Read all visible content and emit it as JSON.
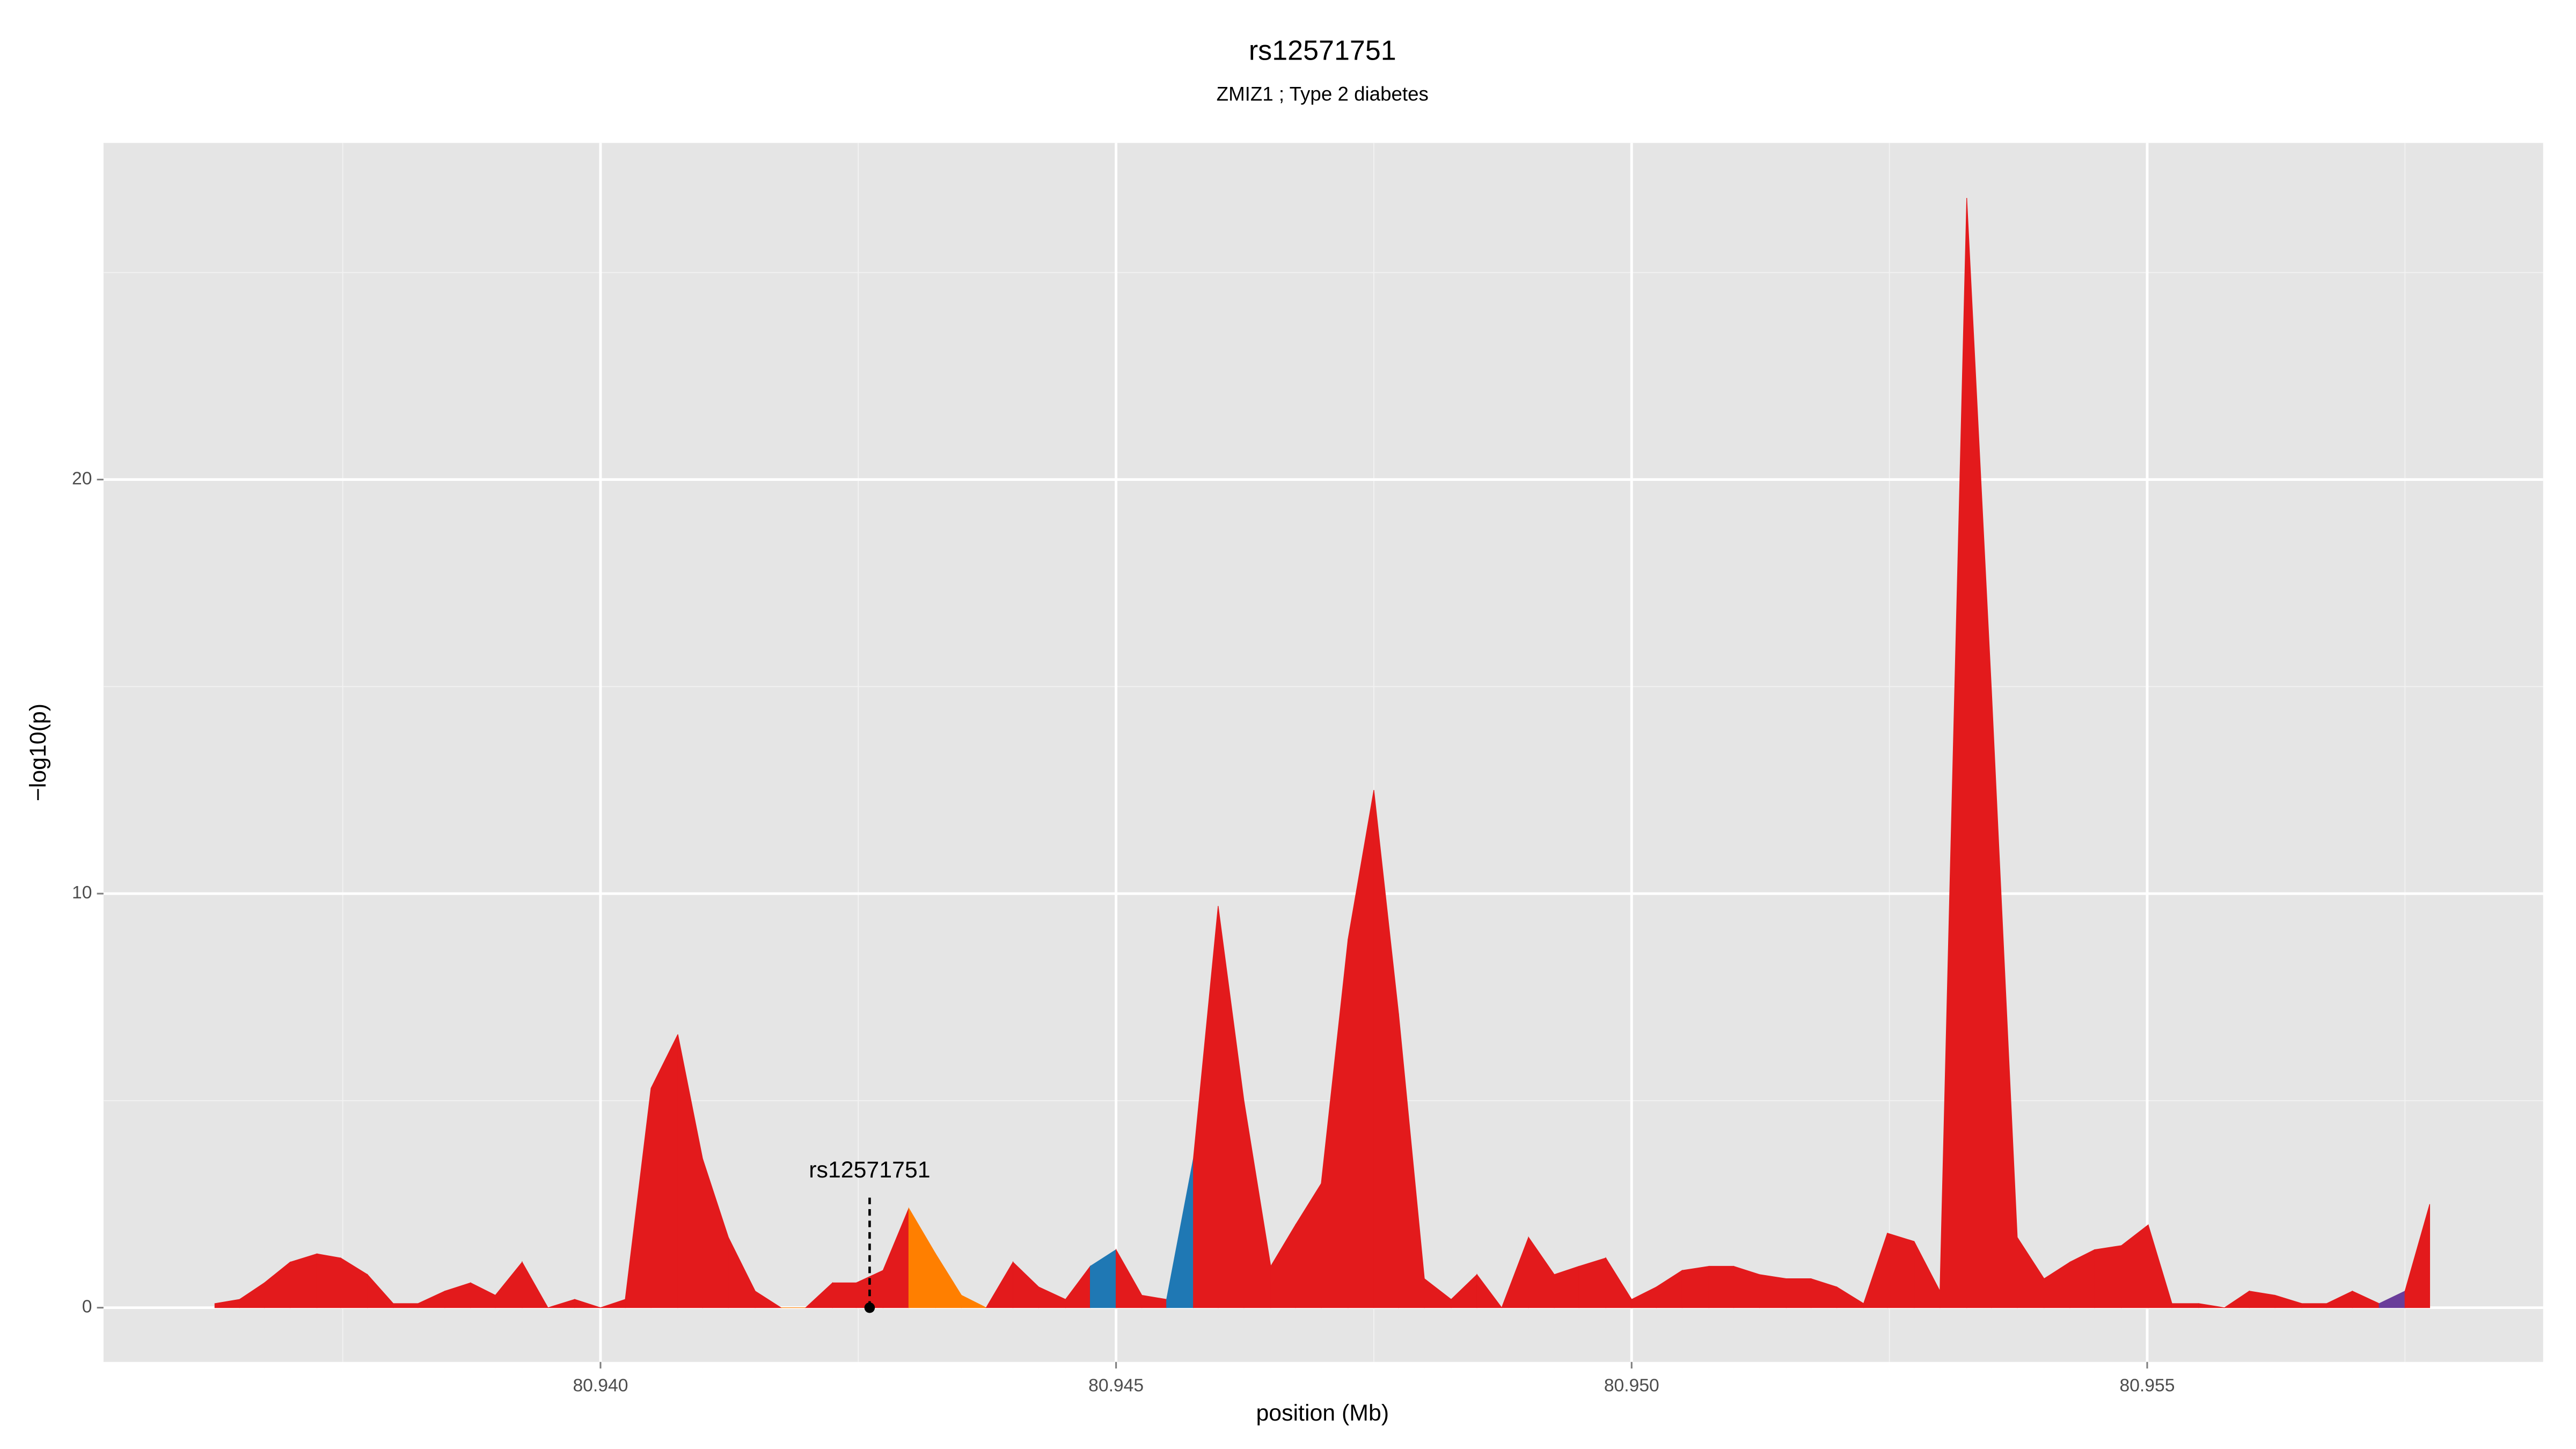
{
  "chart_data": {
    "type": "area",
    "title": "rs12571751",
    "subtitle": "ZMIZ1 ; Type 2 diabetes",
    "xlabel": "position (Mb)",
    "ylabel": "−log10(p)",
    "x": [
      80.93626,
      80.9365,
      80.93674,
      80.93699,
      80.93725,
      80.93748,
      80.93774,
      80.93799,
      80.93823,
      80.93849,
      80.93874,
      80.93898,
      80.93924,
      80.93949,
      80.93975,
      80.94,
      80.94024,
      80.94049,
      80.94075,
      80.94099,
      80.94124,
      80.9415,
      80.94175,
      80.94199,
      80.94225,
      80.94248,
      80.94274,
      80.94299,
      80.94325,
      80.9435,
      80.94374,
      80.944,
      80.94425,
      80.94451,
      80.94475,
      80.945,
      80.94525,
      80.94549,
      80.94575,
      80.94599,
      80.94624,
      80.9465,
      80.94674,
      80.94699,
      80.94725,
      80.9475,
      80.94774,
      80.94799,
      80.94825,
      80.9485,
      80.94874,
      80.949,
      80.94925,
      80.94949,
      80.94975,
      80.95,
      80.95024,
      80.95049,
      80.95075,
      80.95099,
      80.95124,
      80.9515,
      80.95174,
      80.95199,
      80.95225,
      80.95248,
      80.95274,
      80.95299,
      80.95325,
      80.95349,
      80.95374,
      80.954,
      80.95425,
      80.95449,
      80.95475,
      80.95501,
      80.95524,
      80.9555,
      80.95575,
      80.95599,
      80.95624,
      80.9565,
      80.95674,
      80.95699,
      80.95725,
      80.9575,
      80.95774
    ],
    "values": [
      0.1,
      0.2,
      0.6,
      1.1,
      1.3,
      1.2,
      0.8,
      0.1,
      0.1,
      0.4,
      0.6,
      0.3,
      1.1,
      0,
      0.2,
      0,
      0.2,
      5.3,
      6.6,
      3.6,
      1.7,
      0.4,
      0,
      0,
      0.6,
      0.6,
      0.9,
      2.4,
      1.3,
      0.3,
      0,
      1.1,
      0.5,
      0.2,
      1.0,
      1.4,
      0.3,
      0.2,
      3.6,
      9.7,
      5.0,
      1.0,
      2.0,
      3.0,
      8.9,
      12.5,
      7.1,
      0.7,
      0.2,
      0.8,
      0,
      1.7,
      0.8,
      1.0,
      1.2,
      0.2,
      0.5,
      0.9,
      1.0,
      1.0,
      0.8,
      0.7,
      0.7,
      0.5,
      0.1,
      1.8,
      1.6,
      0.4,
      26.8,
      14.9,
      1.7,
      0.7,
      1.1,
      1.4,
      1.5,
      2.0,
      0.1,
      0.1,
      0,
      0.4,
      0.3,
      0.1,
      0.1,
      0.4,
      0.1,
      0.4,
      2.5
    ],
    "colors": [
      "#e31a1c",
      "#e31a1c",
      "#e31a1c",
      "#e31a1c",
      "#e31a1c",
      "#e31a1c",
      "#e31a1c",
      "#e31a1c",
      "#e31a1c",
      "#e31a1c",
      "#e31a1c",
      "#e31a1c",
      "#e31a1c",
      "#e31a1c",
      "#e31a1c",
      "#e31a1c",
      "#e31a1c",
      "#e31a1c",
      "#e31a1c",
      "#e31a1c",
      "#e31a1c",
      "#e31a1c",
      "#ff7f00",
      "#e31a1c",
      "#e31a1c",
      "#e31a1c",
      "#e31a1c",
      "#ff7f00",
      "#ff7f00",
      "#ff7f00",
      "#e31a1c",
      "#e31a1c",
      "#e31a1c",
      "#e31a1c",
      "#1f78b4",
      "#e31a1c",
      "#e31a1c",
      "#1f78b4",
      "#e31a1c",
      "#e31a1c",
      "#e31a1c",
      "#e31a1c",
      "#e31a1c",
      "#e31a1c",
      "#e31a1c",
      "#e31a1c",
      "#e31a1c",
      "#e31a1c",
      "#e31a1c",
      "#e31a1c",
      "#e31a1c",
      "#e31a1c",
      "#e31a1c",
      "#e31a1c",
      "#e31a1c",
      "#e31a1c",
      "#e31a1c",
      "#e31a1c",
      "#e31a1c",
      "#e31a1c",
      "#e31a1c",
      "#e31a1c",
      "#e31a1c",
      "#e31a1c",
      "#e31a1c",
      "#e31a1c",
      "#e31a1c",
      "#e31a1c",
      "#e31a1c",
      "#e31a1c",
      "#e31a1c",
      "#e31a1c",
      "#e31a1c",
      "#e31a1c",
      "#e31a1c",
      "#e31a1c",
      "#e31a1c",
      "#e31a1c",
      "#e31a1c",
      "#e31a1c",
      "#e31a1c",
      "#e31a1c",
      "#e31a1c",
      "#e31a1c",
      "#6a3d9a",
      "#e31a1c",
      "#e31a1c"
    ],
    "annotation": {
      "label": "rs12571751",
      "x": 80.94261,
      "y": 0
    },
    "xlim": [
      80.93518,
      80.95884
    ],
    "ylim": [
      -1.31,
      28.13
    ],
    "xticks": [
      {
        "value": 80.94,
        "label": "80.940"
      },
      {
        "value": 80.945,
        "label": "80.945"
      },
      {
        "value": 80.95,
        "label": "80.950"
      },
      {
        "value": 80.955,
        "label": "80.955"
      }
    ],
    "minor_xticks": [
      80.9375,
      80.9425,
      80.9475,
      80.9525,
      80.9575
    ],
    "yticks": [
      0,
      10,
      20
    ],
    "minor_yticks": [
      5,
      15,
      25
    ],
    "grid": true
  }
}
